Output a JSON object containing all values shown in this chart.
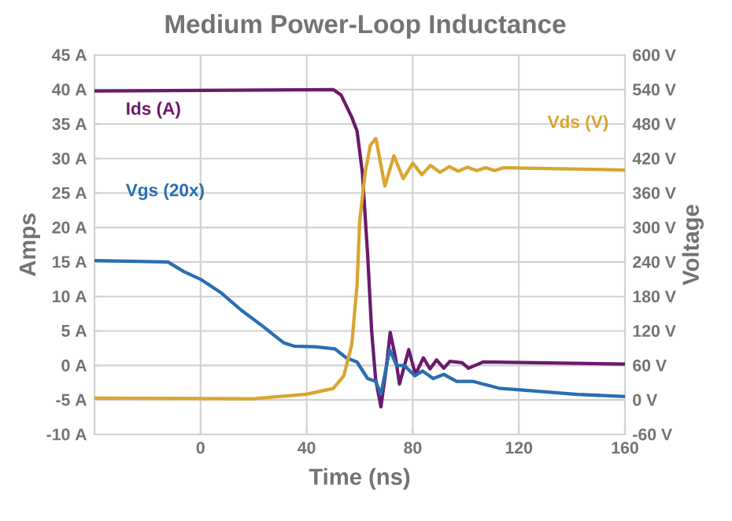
{
  "chart_data": {
    "type": "line",
    "title": "Medium Power-Loop Inductance",
    "xlabel": "Time (ns)",
    "ylabel": "Amps",
    "y2label": "Voltage",
    "xlim": [
      -40,
      160
    ],
    "xticks": [
      {
        "value": -40,
        "label": null
      },
      0,
      40,
      80,
      120,
      160
    ],
    "ylim": [
      -10,
      45
    ],
    "yticks": [
      {
        "value": -10,
        "label": "-10 A"
      },
      {
        "value": -5,
        "label": "-5 A"
      },
      {
        "value": 0,
        "label": "0 A"
      },
      {
        "value": 5,
        "label": "5 A"
      },
      {
        "value": 10,
        "label": "10 A"
      },
      {
        "value": 15,
        "label": "15 A"
      },
      {
        "value": 20,
        "label": "20 A"
      },
      {
        "value": 25,
        "label": "25 A"
      },
      {
        "value": 30,
        "label": "30 A"
      },
      {
        "value": 35,
        "label": "35 A"
      },
      {
        "value": 40,
        "label": "40 A"
      },
      {
        "value": 45,
        "label": "45 A"
      }
    ],
    "y2lim": [
      -60,
      600
    ],
    "y2ticks": [
      {
        "value": -60,
        "label": "-60 V"
      },
      {
        "value": 0,
        "label": "0 V"
      },
      {
        "value": 60,
        "label": "60 V"
      },
      {
        "value": 120,
        "label": "120 V"
      },
      {
        "value": 180,
        "label": "180 V"
      },
      {
        "value": 240,
        "label": "240 V"
      },
      {
        "value": 300,
        "label": "300 V"
      },
      {
        "value": 360,
        "label": "360 V"
      },
      {
        "value": 420,
        "label": "420 V"
      },
      {
        "value": 480,
        "label": "480 V"
      },
      {
        "value": 540,
        "label": "540 V"
      },
      {
        "value": 600,
        "label": "600 V"
      }
    ],
    "grid": true,
    "series": [
      {
        "name": "Ids (A)",
        "color": "#6b1a6b",
        "x": [
          -40,
          50,
          53,
          57,
          59,
          61,
          63,
          64.5,
          66,
          68,
          70,
          71.5,
          73.5,
          75,
          78.5,
          81,
          84,
          86.5,
          89,
          91.7,
          94,
          98.6,
          101,
          106.5,
          160
        ],
        "values": [
          39.8,
          40.0,
          39.2,
          36,
          34,
          28,
          16,
          5,
          -2,
          -6,
          -0.4,
          4.8,
          1.1,
          -2.7,
          2.3,
          -1.3,
          1.1,
          -0.5,
          0.8,
          -0.4,
          0.6,
          0.4,
          -0.4,
          0.5,
          0.2
        ]
      },
      {
        "name": "Vds (V)",
        "color": "#d9a530",
        "axis": "y2",
        "x": [
          -40,
          20,
          40,
          50,
          54,
          57,
          59,
          60,
          62,
          64,
          66.1,
          69.5,
          72.9,
          76.4,
          80.0,
          83.4,
          86.7,
          90.3,
          93.7,
          97.2,
          100.6,
          104.1,
          107.5,
          110.9,
          114.0,
          160
        ],
        "values": [
          3,
          2,
          10,
          20,
          42,
          96,
          200,
          311,
          394,
          443,
          455,
          372,
          425,
          385,
          412,
          392,
          408,
          396,
          406,
          398,
          405,
          399,
          404,
          399,
          404,
          400
        ]
      },
      {
        "name": "Vgs (20x)",
        "color": "#2a6eb0",
        "x": [
          -40,
          -12.3,
          -6.3,
          0,
          7.5,
          15.4,
          23.4,
          27.3,
          31.3,
          35.2,
          43.2,
          50.7,
          55,
          59,
          63,
          66,
          68,
          71.3,
          73.9,
          76.8,
          80.8,
          83.7,
          87.7,
          91.7,
          96.6,
          102.6,
          112.5,
          122.4,
          142,
          160
        ],
        "values": [
          15.2,
          15.0,
          13.6,
          12.5,
          10.6,
          8,
          5.7,
          4.5,
          3.3,
          2.8,
          2.7,
          2.4,
          1.1,
          0.5,
          -1.9,
          -2.3,
          -4.2,
          2.3,
          0,
          0,
          -1.5,
          -0.8,
          -1.9,
          -1.3,
          -2.3,
          -2.3,
          -3.3,
          -3.6,
          -4.2,
          -4.5
        ]
      }
    ]
  }
}
